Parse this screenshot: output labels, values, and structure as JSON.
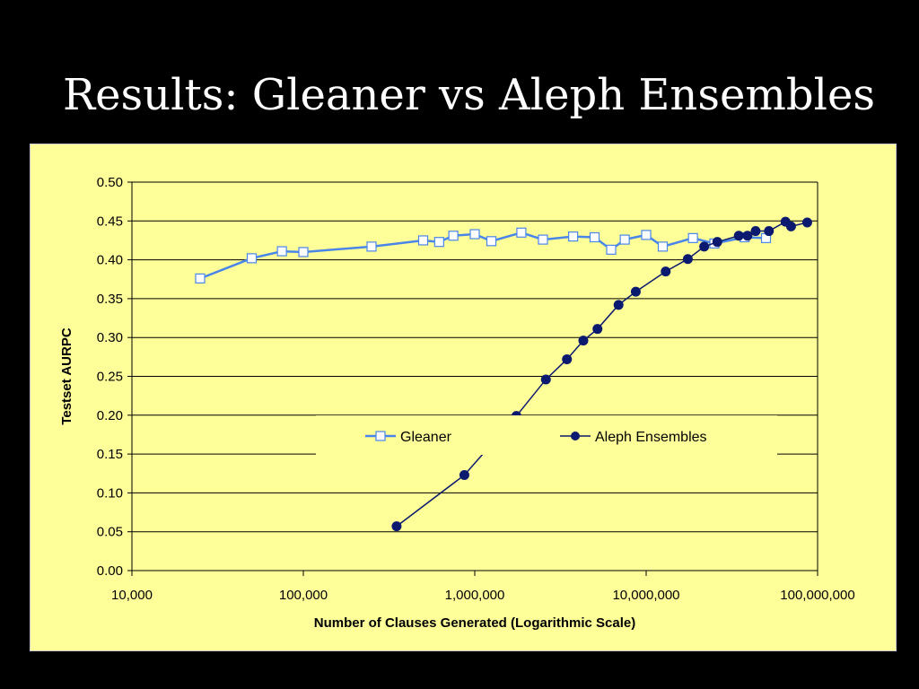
{
  "slide": {
    "title": "Results: Gleaner vs Aleph Ensembles"
  },
  "chart_data": {
    "type": "line",
    "title": "",
    "xlabel": "Number of Clauses Generated (Logarithmic Scale)",
    "ylabel": "Testset AURPC",
    "xscale": "log",
    "xlim": [
      10000,
      100000000
    ],
    "ylim": [
      0,
      0.5
    ],
    "x_ticks": [
      "10,000",
      "100,000",
      "1,000,000",
      "10,000,000",
      "100,000,000"
    ],
    "y_ticks": [
      "0.00",
      "0.05",
      "0.10",
      "0.15",
      "0.20",
      "0.25",
      "0.30",
      "0.35",
      "0.40",
      "0.45",
      "0.50"
    ],
    "grid": "horizontal",
    "legend": "center",
    "background": "#ffff99",
    "series": [
      {
        "name": "Gleaner",
        "color": "#4a86e8",
        "marker": "open-square",
        "x": [
          25000,
          50000,
          75000,
          100000,
          250000,
          500000,
          620000,
          750000,
          1000000,
          1250000,
          1870000,
          2500000,
          3750000,
          5000000,
          6250000,
          7500000,
          10000000,
          12500000,
          18750000,
          25000000,
          37500000,
          50000000
        ],
        "y": [
          0.376,
          0.402,
          0.411,
          0.41,
          0.417,
          0.425,
          0.423,
          0.431,
          0.433,
          0.424,
          0.435,
          0.426,
          0.43,
          0.429,
          0.413,
          0.426,
          0.432,
          0.417,
          0.428,
          0.421,
          0.429,
          0.428
        ]
      },
      {
        "name": "Aleph Ensembles",
        "color": "#0b1a6e",
        "marker": "filled-circle",
        "x": [
          350000,
          870000,
          1750000,
          2600000,
          3450000,
          4300000,
          5200000,
          6900000,
          8700000,
          13000000,
          17500000,
          21800000,
          26000000,
          34700000,
          39000000,
          43500000,
          52000000,
          65000000,
          70000000,
          87000000
        ],
        "y": [
          0.057,
          0.123,
          0.199,
          0.246,
          0.272,
          0.296,
          0.311,
          0.342,
          0.359,
          0.385,
          0.401,
          0.417,
          0.423,
          0.431,
          0.431,
          0.437,
          0.437,
          0.449,
          0.443,
          0.448
        ]
      }
    ]
  }
}
